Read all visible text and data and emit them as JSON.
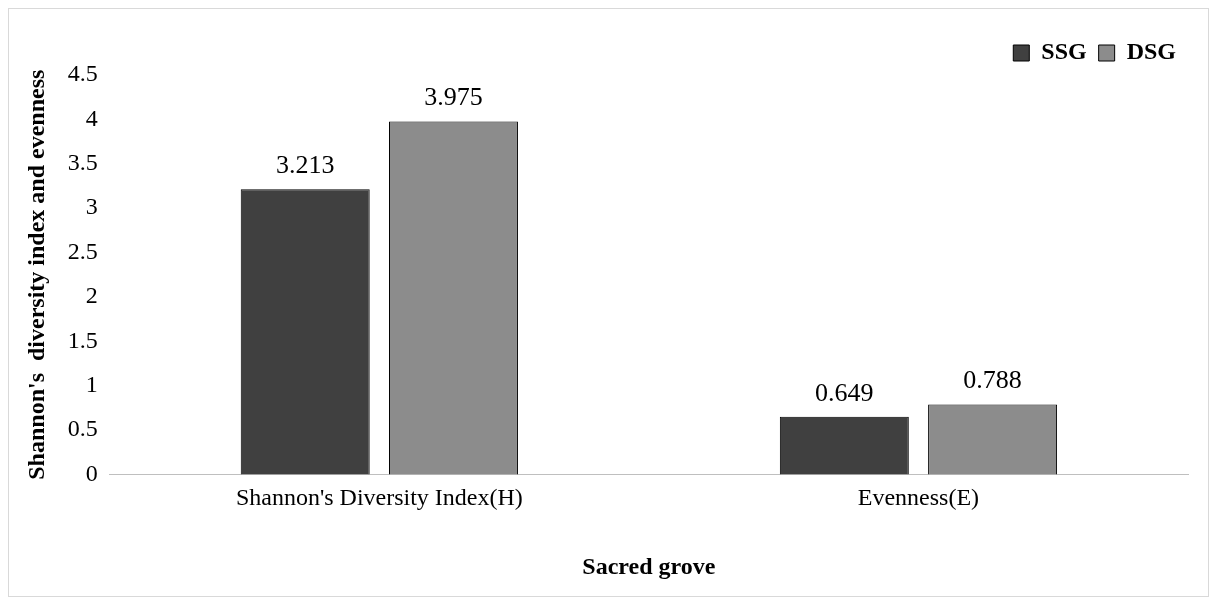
{
  "chart_data": {
    "type": "bar",
    "xlabel": "Sacred grove",
    "ylabel": "Shannon's  diversity index and evenness",
    "categories": [
      "Shannon's Diversity Index(H)",
      "Evenness(E)"
    ],
    "series": [
      {
        "name": "SSG",
        "color": "#404040",
        "values": [
          3.213,
          0.649
        ]
      },
      {
        "name": "DSG",
        "color": "#8c8c8c",
        "values": [
          3.975,
          0.788
        ]
      }
    ],
    "ylim": [
      0,
      4.5
    ],
    "yticks": [
      0,
      0.5,
      1,
      1.5,
      2,
      2.5,
      3,
      3.5,
      4,
      4.5
    ],
    "grid": false,
    "legend": "top right",
    "data_labels": true
  }
}
